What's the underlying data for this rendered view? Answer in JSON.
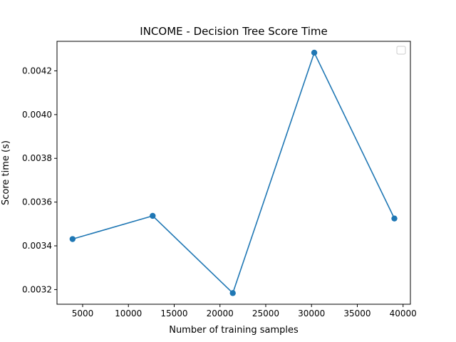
{
  "chart_data": {
    "type": "line",
    "title": "INCOME - Decision Tree Score Time",
    "xlabel": "Number of training samples",
    "ylabel": "Score time (s)",
    "xlim": [
      2200,
      40800
    ],
    "ylim": [
      0.003133,
      0.004335
    ],
    "x_ticks": [
      5000,
      10000,
      15000,
      20000,
      25000,
      30000,
      35000,
      40000
    ],
    "y_ticks": [
      0.0032,
      0.0034,
      0.0036,
      0.0038,
      0.004,
      0.0042
    ],
    "x_tick_labels": [
      "5000",
      "10000",
      "15000",
      "20000",
      "25000",
      "30000",
      "35000",
      "40000"
    ],
    "y_tick_labels": [
      "0.0032",
      "0.0034",
      "0.0036",
      "0.0038",
      "0.0040",
      "0.0042"
    ],
    "series": [
      {
        "x": [
          3900,
          12650,
          21400,
          30300,
          39050
        ],
        "y": [
          0.003431,
          0.003537,
          0.003184,
          0.004283,
          0.003525
        ],
        "color": "#1f77b4"
      }
    ],
    "legend": "top-right",
    "grid": false
  }
}
